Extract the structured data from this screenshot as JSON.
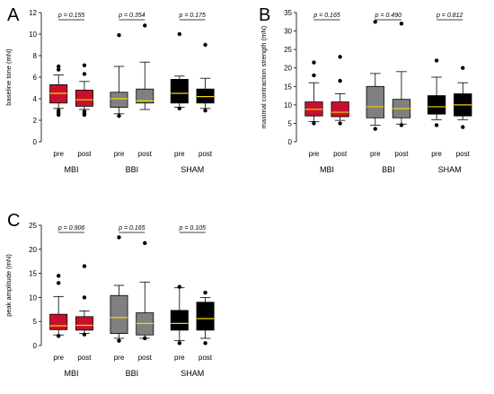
{
  "chart_data": [
    {
      "type": "box",
      "panel": "A",
      "ylabel": "baseline tone (mN)",
      "ylim": [
        0,
        12
      ],
      "yticks": [
        0,
        2,
        4,
        6,
        8,
        10,
        12
      ],
      "groups": [
        {
          "name": "MBI",
          "p_label": "p = 0.155",
          "boxes": [
            {
              "category": "pre",
              "color": "#c8102e",
              "whisker_low": 3.1,
              "q1": 3.6,
              "median": 4.5,
              "q3": 5.3,
              "whisker_high": 6.2,
              "outliers": [
                2.5,
                2.7,
                2.9,
                6.7,
                7.0
              ]
            },
            {
              "category": "post",
              "color": "#c8102e",
              "whisker_low": 3.0,
              "q1": 3.3,
              "median": 3.9,
              "q3": 4.8,
              "whisker_high": 5.6,
              "outliers": [
                2.5,
                2.6,
                2.8,
                6.3,
                7.1
              ]
            }
          ]
        },
        {
          "name": "BBI",
          "p_label": "p = 0.354",
          "boxes": [
            {
              "category": "pre",
              "color": "#808080",
              "whisker_low": 2.6,
              "q1": 3.2,
              "median": 4.0,
              "q3": 4.6,
              "whisker_high": 7.0,
              "outliers": [
                2.4,
                9.9
              ]
            },
            {
              "category": "post",
              "color": "#808080",
              "whisker_low": 3.0,
              "q1": 3.6,
              "median": 3.8,
              "q3": 4.9,
              "whisker_high": 7.4,
              "outliers": [
                10.8
              ]
            }
          ]
        },
        {
          "name": "SHAM",
          "p_label": "p = 0.175",
          "boxes": [
            {
              "category": "pre",
              "color": "#000000",
              "whisker_low": 3.2,
              "q1": 3.6,
              "median": 4.5,
              "q3": 5.8,
              "whisker_high": 6.1,
              "outliers": [
                3.1,
                10.0
              ]
            },
            {
              "category": "post",
              "color": "#000000",
              "whisker_low": 3.1,
              "q1": 3.6,
              "median": 4.2,
              "q3": 4.9,
              "whisker_high": 5.9,
              "outliers": [
                2.9,
                9.0
              ]
            }
          ]
        }
      ]
    },
    {
      "type": "box",
      "panel": "B",
      "ylabel": "maximal contraction strength (mN)",
      "ylim": [
        0,
        35
      ],
      "yticks": [
        0,
        5,
        10,
        15,
        20,
        25,
        30,
        35
      ],
      "groups": [
        {
          "name": "MBI",
          "p_label": "p = 0.165",
          "boxes": [
            {
              "category": "pre",
              "color": "#c8102e",
              "whisker_low": 5.5,
              "q1": 7.0,
              "median": 8.8,
              "q3": 10.8,
              "whisker_high": 16.0,
              "outliers": [
                5.0,
                18.0,
                21.5
              ]
            },
            {
              "category": "post",
              "color": "#c8102e",
              "whisker_low": 5.8,
              "q1": 6.8,
              "median": 8.0,
              "q3": 10.8,
              "whisker_high": 13.0,
              "outliers": [
                5.0,
                16.5,
                23.0
              ]
            }
          ]
        },
        {
          "name": "BBI",
          "p_label": "p = 0.490",
          "boxes": [
            {
              "category": "pre",
              "color": "#808080",
              "whisker_low": 4.5,
              "q1": 6.5,
              "median": 9.5,
              "q3": 15.0,
              "whisker_high": 18.5,
              "outliers": [
                3.5,
                32.5
              ]
            },
            {
              "category": "post",
              "color": "#808080",
              "whisker_low": 4.8,
              "q1": 6.5,
              "median": 9.0,
              "q3": 11.5,
              "whisker_high": 19.0,
              "outliers": [
                4.5,
                32.0
              ]
            }
          ]
        },
        {
          "name": "SHAM",
          "p_label": "p = 0.812",
          "boxes": [
            {
              "category": "pre",
              "color": "#000000",
              "whisker_low": 6.0,
              "q1": 7.5,
              "median": 9.5,
              "q3": 12.5,
              "whisker_high": 17.5,
              "outliers": [
                4.5,
                22.0
              ]
            },
            {
              "category": "post",
              "color": "#000000",
              "whisker_low": 6.0,
              "q1": 7.0,
              "median": 10.0,
              "q3": 13.0,
              "whisker_high": 16.0,
              "outliers": [
                4.0,
                20.0
              ]
            }
          ]
        }
      ]
    },
    {
      "type": "box",
      "panel": "C",
      "ylabel": "peak amplitude (mN)",
      "ylim": [
        0,
        25
      ],
      "yticks": [
        0,
        5,
        10,
        15,
        20,
        25
      ],
      "groups": [
        {
          "name": "MBI",
          "p_label": "p = 0.906",
          "boxes": [
            {
              "category": "pre",
              "color": "#c8102e",
              "whisker_low": 2.2,
              "q1": 3.3,
              "median": 4.1,
              "q3": 6.5,
              "whisker_high": 10.2,
              "outliers": [
                2.0,
                13.0,
                14.5
              ]
            },
            {
              "category": "post",
              "color": "#c8102e",
              "whisker_low": 2.5,
              "q1": 3.2,
              "median": 4.2,
              "q3": 6.0,
              "whisker_high": 7.2,
              "outliers": [
                2.3,
                10.0,
                16.5
              ]
            }
          ]
        },
        {
          "name": "BBI",
          "p_label": "p = 0.165",
          "boxes": [
            {
              "category": "pre",
              "color": "#808080",
              "whisker_low": 1.5,
              "q1": 2.5,
              "median": 5.8,
              "q3": 10.4,
              "whisker_high": 12.5,
              "outliers": [
                1.0,
                22.5
              ]
            },
            {
              "category": "post",
              "color": "#808080",
              "whisker_low": 1.5,
              "q1": 2.2,
              "median": 4.6,
              "q3": 6.8,
              "whisker_high": 13.2,
              "outliers": [
                1.5,
                21.3
              ]
            }
          ]
        },
        {
          "name": "SHAM",
          "p_label": "p = 0.105",
          "boxes": [
            {
              "category": "pre",
              "color": "#000000",
              "whisker_low": 1.0,
              "q1": 3.2,
              "median": 4.6,
              "q3": 7.3,
              "whisker_high": 12.0,
              "outliers": [
                0.5,
                12.2
              ]
            },
            {
              "category": "post",
              "color": "#000000",
              "whisker_low": 1.5,
              "q1": 3.2,
              "median": 5.6,
              "q3": 9.0,
              "whisker_high": 10.0,
              "outliers": [
                0.5,
                11.0
              ]
            }
          ]
        }
      ]
    }
  ]
}
